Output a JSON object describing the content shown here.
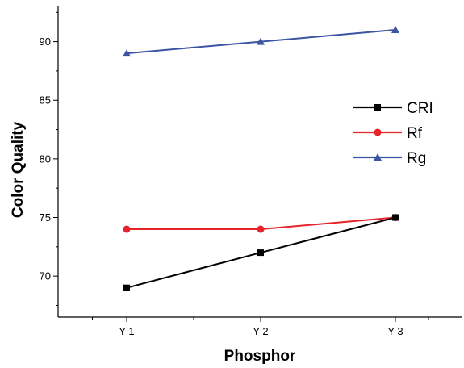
{
  "chart_data": {
    "type": "line",
    "title": "",
    "xlabel": "Phosphor",
    "ylabel": "Color Quality",
    "categories": [
      "Y 1",
      "Y 2",
      "Y 3"
    ],
    "ylim": [
      66.5,
      93
    ],
    "yticks": [
      70,
      75,
      80,
      85,
      90
    ],
    "grid": false,
    "legend_position": "right",
    "series": [
      {
        "name": "CRI",
        "values": [
          69,
          72,
          75
        ],
        "color": "#000000",
        "marker": "square"
      },
      {
        "name": "Rf",
        "values": [
          74,
          74,
          75
        ],
        "color": "#e8242b",
        "marker": "circle"
      },
      {
        "name": "Rg",
        "values": [
          89,
          90,
          91
        ],
        "color": "#3b55a3",
        "marker": "triangle"
      }
    ]
  }
}
